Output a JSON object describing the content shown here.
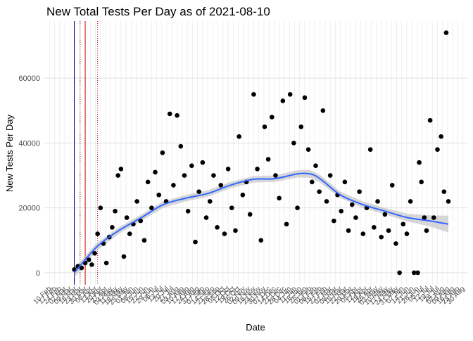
{
  "chart_data": {
    "type": "scatter",
    "title": "New Total Tests Per Day as of 2021-08-10",
    "xlabel": "Date",
    "ylabel": "New Tests Per Day",
    "xlim": [
      "2020-02-02",
      "2021-09-06"
    ],
    "ylim": [
      -3700,
      77600
    ],
    "yticks": [
      0,
      20000,
      40000,
      60000
    ],
    "grid": true,
    "xticks": [
      {
        "value": "2020-02-10",
        "label": "10 Feb"
      },
      {
        "value": "2020-02-17",
        "label": "17 Feb"
      },
      {
        "value": "2020-02-24",
        "label": "24 Feb"
      },
      {
        "value": "2020-03-02",
        "label": "02 Mar"
      },
      {
        "value": "2020-03-09",
        "label": "09 Mar"
      },
      {
        "value": "2020-03-16",
        "label": "16 Mar"
      },
      {
        "value": "2020-03-23",
        "label": "23 Mar"
      },
      {
        "value": "2020-03-30",
        "label": "30 Mar"
      },
      {
        "value": "2020-04-06",
        "label": "06 Apr"
      },
      {
        "value": "2020-04-13",
        "label": "13 Apr"
      },
      {
        "value": "2020-04-20",
        "label": "20 Apr"
      },
      {
        "value": "2020-04-27",
        "label": "27 Apr"
      },
      {
        "value": "2020-05-04",
        "label": "04 May"
      },
      {
        "value": "2020-05-11",
        "label": "11 May"
      },
      {
        "value": "2020-05-18",
        "label": "18 May"
      },
      {
        "value": "2020-05-25",
        "label": "25 May"
      },
      {
        "value": "2020-06-01",
        "label": "01 Jun"
      },
      {
        "value": "2020-06-08",
        "label": "08 Jun"
      },
      {
        "value": "2020-06-15",
        "label": "15 Jun"
      },
      {
        "value": "2020-06-22",
        "label": "22 Jun"
      },
      {
        "value": "2020-06-29",
        "label": "29 Jun"
      },
      {
        "value": "2020-07-06",
        "label": "06 Jul"
      },
      {
        "value": "2020-07-13",
        "label": "13 Jul"
      },
      {
        "value": "2020-07-20",
        "label": "20 Jul"
      },
      {
        "value": "2020-07-27",
        "label": "27 Jul"
      },
      {
        "value": "2020-08-03",
        "label": "03 Aug"
      },
      {
        "value": "2020-08-10",
        "label": "10 Aug"
      },
      {
        "value": "2020-08-17",
        "label": "17 Aug"
      },
      {
        "value": "2020-08-24",
        "label": "24 Aug"
      },
      {
        "value": "2020-08-31",
        "label": "31 Aug"
      },
      {
        "value": "2020-09-07",
        "label": "07 Sep"
      },
      {
        "value": "2020-09-14",
        "label": "14 Sep"
      },
      {
        "value": "2020-09-21",
        "label": "21 Sep"
      },
      {
        "value": "2020-09-28",
        "label": "28 Sep"
      },
      {
        "value": "2020-10-05",
        "label": "05 Oct"
      },
      {
        "value": "2020-10-12",
        "label": "12 Oct"
      },
      {
        "value": "2020-10-19",
        "label": "19 Oct"
      },
      {
        "value": "2020-10-26",
        "label": "26 Oct"
      },
      {
        "value": "2020-11-02",
        "label": "02 Nov"
      },
      {
        "value": "2020-11-09",
        "label": "09 Nov"
      },
      {
        "value": "2020-11-16",
        "label": "16 Nov"
      },
      {
        "value": "2020-11-23",
        "label": "23 Nov"
      },
      {
        "value": "2020-11-30",
        "label": "30 Nov"
      },
      {
        "value": "2020-12-07",
        "label": "07 Dec"
      },
      {
        "value": "2020-12-14",
        "label": "14 Dec"
      },
      {
        "value": "2020-12-21",
        "label": "21 Dec"
      },
      {
        "value": "2020-12-28",
        "label": "28 Dec"
      },
      {
        "value": "2021-01-04",
        "label": "04 Jan"
      },
      {
        "value": "2021-01-11",
        "label": "11 Jan"
      },
      {
        "value": "2021-01-18",
        "label": "18 Jan"
      },
      {
        "value": "2021-01-25",
        "label": "25 Jan"
      },
      {
        "value": "2021-02-01",
        "label": "01 Feb"
      },
      {
        "value": "2021-02-08",
        "label": "08 Feb"
      },
      {
        "value": "2021-02-15",
        "label": "15 Feb"
      },
      {
        "value": "2021-02-22",
        "label": "22 Feb"
      },
      {
        "value": "2021-03-01",
        "label": "01 Mar"
      },
      {
        "value": "2021-03-08",
        "label": "08 Mar"
      },
      {
        "value": "2021-03-15",
        "label": "15 Mar"
      },
      {
        "value": "2021-03-22",
        "label": "22 Mar"
      },
      {
        "value": "2021-03-29",
        "label": "29 Mar"
      },
      {
        "value": "2021-04-05",
        "label": "05 Apr"
      },
      {
        "value": "2021-04-12",
        "label": "12 Apr"
      },
      {
        "value": "2021-04-19",
        "label": "19 Apr"
      },
      {
        "value": "2021-04-26",
        "label": "26 Apr"
      },
      {
        "value": "2021-05-03",
        "label": "03 May"
      },
      {
        "value": "2021-05-10",
        "label": "10 May"
      },
      {
        "value": "2021-05-17",
        "label": "17 May"
      },
      {
        "value": "2021-05-24",
        "label": "24 May"
      },
      {
        "value": "2021-05-31",
        "label": "31 May"
      },
      {
        "value": "2021-06-07",
        "label": "07 Jun"
      },
      {
        "value": "2021-06-14",
        "label": "14 Jun"
      },
      {
        "value": "2021-06-21",
        "label": "21 Jun"
      },
      {
        "value": "2021-06-28",
        "label": "28 Jun"
      },
      {
        "value": "2021-07-05",
        "label": "05 Jul"
      },
      {
        "value": "2021-07-12",
        "label": "12 Jul"
      },
      {
        "value": "2021-07-19",
        "label": "19 Jul"
      },
      {
        "value": "2021-07-26",
        "label": "26 Jul"
      },
      {
        "value": "2021-08-02",
        "label": "02 Aug"
      },
      {
        "value": "2021-08-09",
        "label": "09 Aug"
      },
      {
        "value": "2021-08-16",
        "label": "16 Aug"
      },
      {
        "value": "2021-08-23",
        "label": "23 Aug"
      },
      {
        "value": "2021-08-30",
        "label": "30 Aug"
      }
    ],
    "vlines": [
      {
        "x": "2020-03-15",
        "color": "#00008b",
        "style": "solid"
      },
      {
        "x": "2020-03-23",
        "color": "#8b0000",
        "style": "dotted"
      },
      {
        "x": "2020-03-30",
        "color": "#cc0000",
        "style": "solid"
      },
      {
        "x": "2020-04-16",
        "color": "#8b0000",
        "style": "dotted"
      }
    ],
    "points": {
      "color": "#000000",
      "x": [
        "2020-03-15",
        "2020-03-20",
        "2020-03-25",
        "2020-03-30",
        "2020-04-04",
        "2020-04-08",
        "2020-04-12",
        "2020-04-16",
        "2020-04-20",
        "2020-04-24",
        "2020-04-28",
        "2020-05-02",
        "2020-05-06",
        "2020-05-10",
        "2020-05-14",
        "2020-05-18",
        "2020-05-22",
        "2020-05-26",
        "2020-05-30",
        "2020-06-04",
        "2020-06-09",
        "2020-06-14",
        "2020-06-19",
        "2020-06-24",
        "2020-06-29",
        "2020-07-04",
        "2020-07-09",
        "2020-07-14",
        "2020-07-19",
        "2020-07-24",
        "2020-07-29",
        "2020-08-03",
        "2020-08-08",
        "2020-08-13",
        "2020-08-18",
        "2020-08-23",
        "2020-08-28",
        "2020-09-02",
        "2020-09-07",
        "2020-09-12",
        "2020-09-17",
        "2020-09-22",
        "2020-09-27",
        "2020-10-02",
        "2020-10-07",
        "2020-10-12",
        "2020-10-17",
        "2020-10-22",
        "2020-10-27",
        "2020-11-01",
        "2020-11-06",
        "2020-11-11",
        "2020-11-16",
        "2020-11-21",
        "2020-11-26",
        "2020-12-01",
        "2020-12-06",
        "2020-12-11",
        "2020-12-16",
        "2020-12-21",
        "2020-12-26",
        "2020-12-31",
        "2021-01-05",
        "2021-01-10",
        "2021-01-15",
        "2021-01-20",
        "2021-01-25",
        "2021-01-30",
        "2021-02-04",
        "2021-02-09",
        "2021-02-14",
        "2021-02-19",
        "2021-02-24",
        "2021-03-01",
        "2021-03-06",
        "2021-03-11",
        "2021-03-16",
        "2021-03-21",
        "2021-03-26",
        "2021-03-31",
        "2021-04-05",
        "2021-04-10",
        "2021-04-15",
        "2021-04-20",
        "2021-04-25",
        "2021-04-30",
        "2021-05-05",
        "2021-05-10",
        "2021-05-15",
        "2021-05-20",
        "2021-05-25",
        "2021-05-30",
        "2021-06-04",
        "2021-06-09",
        "2021-06-14",
        "2021-06-19",
        "2021-06-24",
        "2021-06-29",
        "2021-07-01",
        "2021-07-04",
        "2021-07-08",
        "2021-07-11",
        "2021-07-16",
        "2021-07-21",
        "2021-07-26",
        "2021-07-31",
        "2021-08-04",
        "2021-08-07",
        "2021-08-10"
      ],
      "values": [
        1000,
        2000,
        1500,
        3000,
        4000,
        2500,
        6000,
        12000,
        20000,
        9000,
        3000,
        11000,
        14000,
        19000,
        30000,
        32000,
        5000,
        17000,
        12000,
        15000,
        22000,
        16000,
        10000,
        28000,
        20000,
        31000,
        24000,
        37000,
        22000,
        49000,
        27000,
        48500,
        39000,
        30000,
        19000,
        33000,
        9500,
        25000,
        34000,
        17000,
        22000,
        30000,
        14000,
        27000,
        12000,
        32000,
        20000,
        13000,
        42000,
        24000,
        28000,
        18000,
        55000,
        32000,
        10000,
        45000,
        35000,
        48000,
        30000,
        23000,
        53000,
        15000,
        55000,
        40000,
        20000,
        45000,
        54000,
        38000,
        28000,
        33000,
        25000,
        50000,
        22000,
        30000,
        16000,
        24000,
        19000,
        28000,
        13000,
        21000,
        17000,
        25000,
        12000,
        20000,
        38000,
        14000,
        22000,
        11000,
        18000,
        13000,
        27000,
        9000,
        0,
        15000,
        12000,
        22000,
        0,
        0,
        34000,
        28000,
        17000,
        13000,
        47000,
        17000,
        38000,
        42000,
        25000,
        74000,
        22000
      ]
    },
    "smooth": {
      "color": "#3366ff",
      "band_color": "#bdbdbd",
      "x": [
        "2020-03-15",
        "2020-04-15",
        "2020-05-15",
        "2020-06-15",
        "2020-07-15",
        "2020-08-15",
        "2020-09-15",
        "2020-10-15",
        "2020-11-15",
        "2020-12-15",
        "2021-01-15",
        "2021-02-01",
        "2021-02-15",
        "2021-03-15",
        "2021-04-15",
        "2021-05-15",
        "2021-06-15",
        "2021-07-15",
        "2021-08-10"
      ],
      "values": [
        0,
        8000,
        13000,
        17000,
        21000,
        23000,
        24500,
        27000,
        28800,
        29000,
        30500,
        30500,
        29000,
        24000,
        21000,
        19000,
        17000,
        16000,
        15000
      ],
      "lower": [
        -1500,
        6800,
        12000,
        16000,
        20000,
        22000,
        23500,
        26000,
        27800,
        28000,
        29400,
        29300,
        27800,
        23000,
        20000,
        18000,
        15800,
        14300,
        12400
      ],
      "upper": [
        1500,
        9200,
        14000,
        18000,
        22000,
        24000,
        25500,
        28000,
        29800,
        30000,
        31600,
        31700,
        30200,
        25000,
        22000,
        20000,
        18200,
        17700,
        17600
      ]
    }
  }
}
